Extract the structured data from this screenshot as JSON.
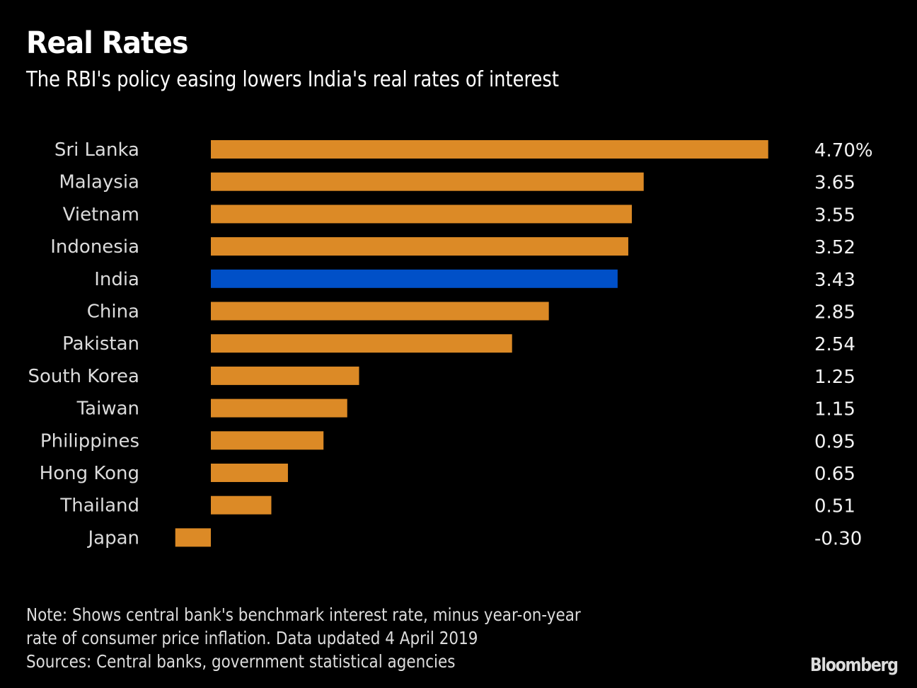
{
  "chart_data": {
    "type": "bar",
    "orientation": "horizontal",
    "title": "Real Rates",
    "subtitle": "The RBI's policy easing lowers India's real rates of interest",
    "categories": [
      "Sri Lanka",
      "Malaysia",
      "Vietnam",
      "Indonesia",
      "India",
      "China",
      "Pakistan",
      "South Korea",
      "Taiwan",
      "Philippines",
      "Hong Kong",
      "Thailand",
      "Japan"
    ],
    "values": [
      4.7,
      3.65,
      3.55,
      3.52,
      3.43,
      2.85,
      2.54,
      1.25,
      1.15,
      0.95,
      0.65,
      0.51,
      -0.3
    ],
    "value_labels": [
      "4.70%",
      "3.65",
      "3.55",
      "3.52",
      "3.43",
      "2.85",
      "2.54",
      "1.25",
      "1.15",
      "0.95",
      "0.65",
      "0.51",
      "-0.30"
    ],
    "highlight": "India",
    "unit": "%",
    "xlabel": "",
    "ylabel": "",
    "xlim": [
      -0.3,
      4.7
    ],
    "grid": false,
    "legend": "none",
    "colors": {
      "default": "#dc8a26",
      "highlight": "#0050c8",
      "background": "#000000"
    }
  },
  "footnote": {
    "lines": [
      "Note: Shows central bank's benchmark interest rate, minus year-on-year",
      "rate of consumer price inflation. Data updated 4 April 2019",
      "Sources: Central banks, government statistical agencies"
    ]
  },
  "brand": "Bloomberg"
}
